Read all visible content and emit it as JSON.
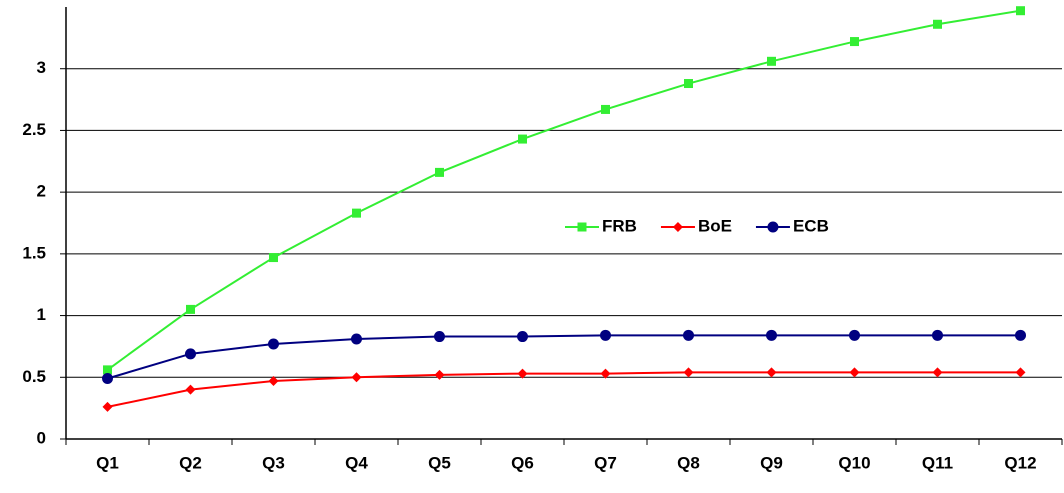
{
  "chart_data": {
    "type": "line",
    "categories": [
      "Q1",
      "Q2",
      "Q3",
      "Q4",
      "Q5",
      "Q6",
      "Q7",
      "Q8",
      "Q9",
      "Q10",
      "Q11",
      "Q12"
    ],
    "series": [
      {
        "name": "FRB",
        "color": "#33ee33",
        "marker": "square",
        "values": [
          0.56,
          1.05,
          1.47,
          1.83,
          2.16,
          2.43,
          2.67,
          2.88,
          3.06,
          3.22,
          3.36,
          3.47
        ]
      },
      {
        "name": "BoE",
        "color": "#ff0000",
        "marker": "diamond",
        "values": [
          0.26,
          0.4,
          0.47,
          0.5,
          0.52,
          0.53,
          0.53,
          0.54,
          0.54,
          0.54,
          0.54,
          0.54
        ]
      },
      {
        "name": "ECB",
        "color": "#000080",
        "marker": "circle",
        "values": [
          0.49,
          0.69,
          0.77,
          0.81,
          0.83,
          0.83,
          0.84,
          0.84,
          0.84,
          0.84,
          0.84,
          0.84
        ]
      }
    ],
    "ylim": [
      0,
      3.5
    ],
    "yticks": [
      0,
      0.5,
      1,
      1.5,
      2,
      2.5,
      3
    ],
    "grid": true,
    "legend": "center-right"
  }
}
